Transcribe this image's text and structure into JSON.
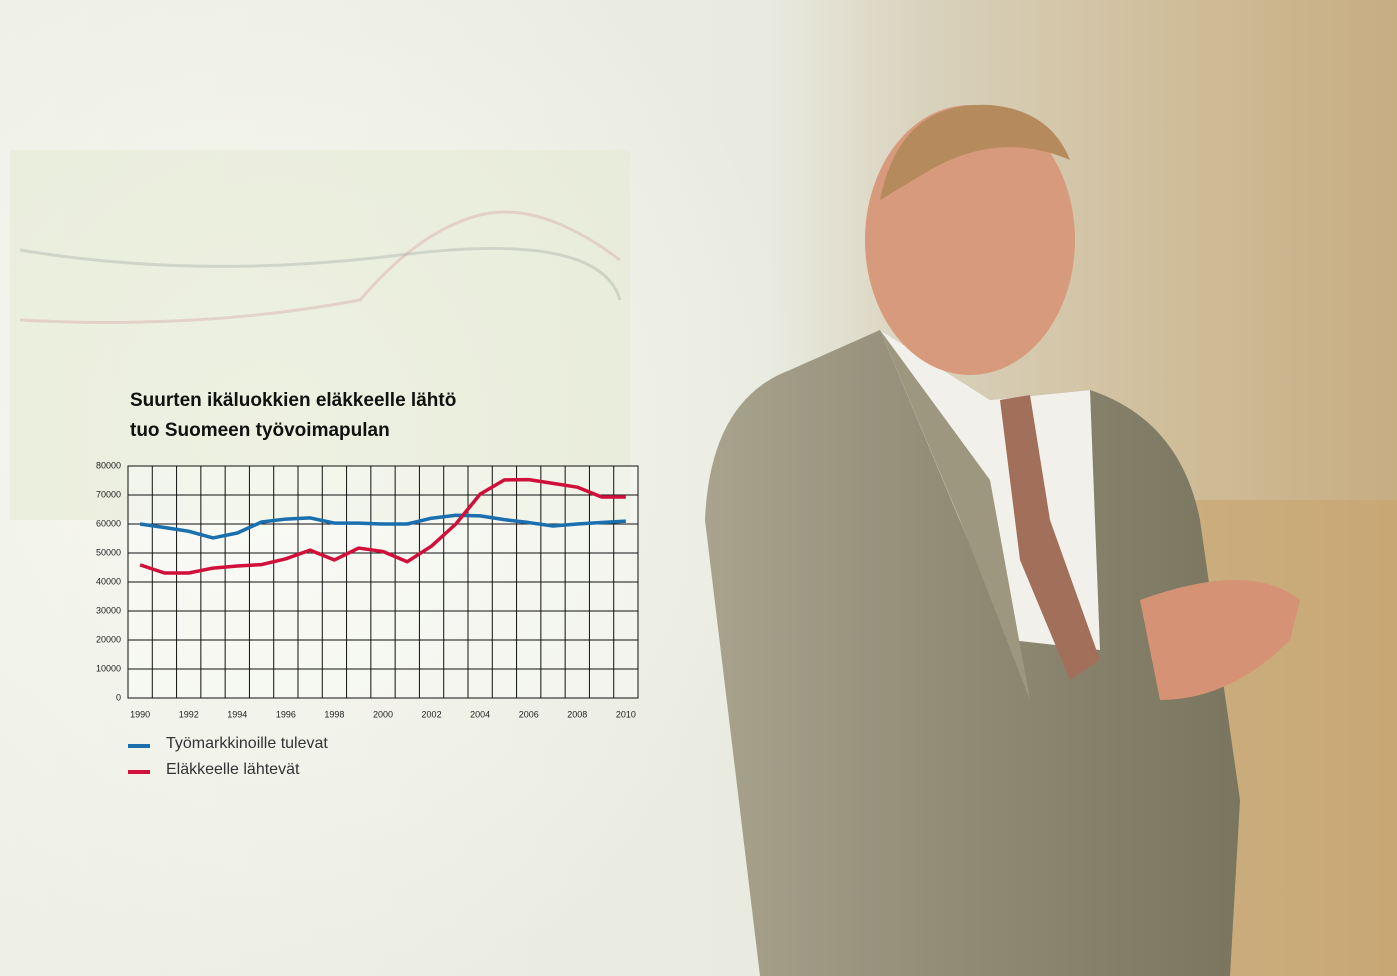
{
  "chart_data": {
    "type": "line",
    "title": [
      "Suurten ikäluokkien eläkkeelle lähtö",
      "tuo Suomeen työvoimapulan"
    ],
    "categories": [
      "1990",
      null,
      "1992",
      null,
      "1994",
      null,
      "1996",
      null,
      "1998",
      null,
      "2000",
      null,
      "2002",
      null,
      "2004",
      null,
      "2006",
      null,
      "2008",
      null,
      "2010"
    ],
    "series": [
      {
        "name": "Työmarkkinoille tulevat",
        "color": "#1a6fae",
        "values": [
          60000,
          58800,
          57500,
          55200,
          56900,
          60700,
          61700,
          62100,
          60300,
          60300,
          60000,
          60000,
          62000,
          63000,
          62800,
          61500,
          60500,
          59300,
          60000,
          60500,
          61000
        ]
      },
      {
        "name": "Eläkkeelle lähtevät",
        "color": "#d0103a",
        "values": [
          45900,
          43100,
          43100,
          44800,
          45500,
          46000,
          48000,
          51000,
          47600,
          51700,
          50500,
          47000,
          52400,
          60000,
          70300,
          75200,
          75300,
          74000,
          72700,
          69300,
          69300
        ]
      }
    ],
    "ylim": [
      0,
      80000
    ],
    "yticks": [
      0,
      10000,
      20000,
      30000,
      40000,
      50000,
      60000,
      70000,
      80000
    ],
    "grid": true
  }
}
